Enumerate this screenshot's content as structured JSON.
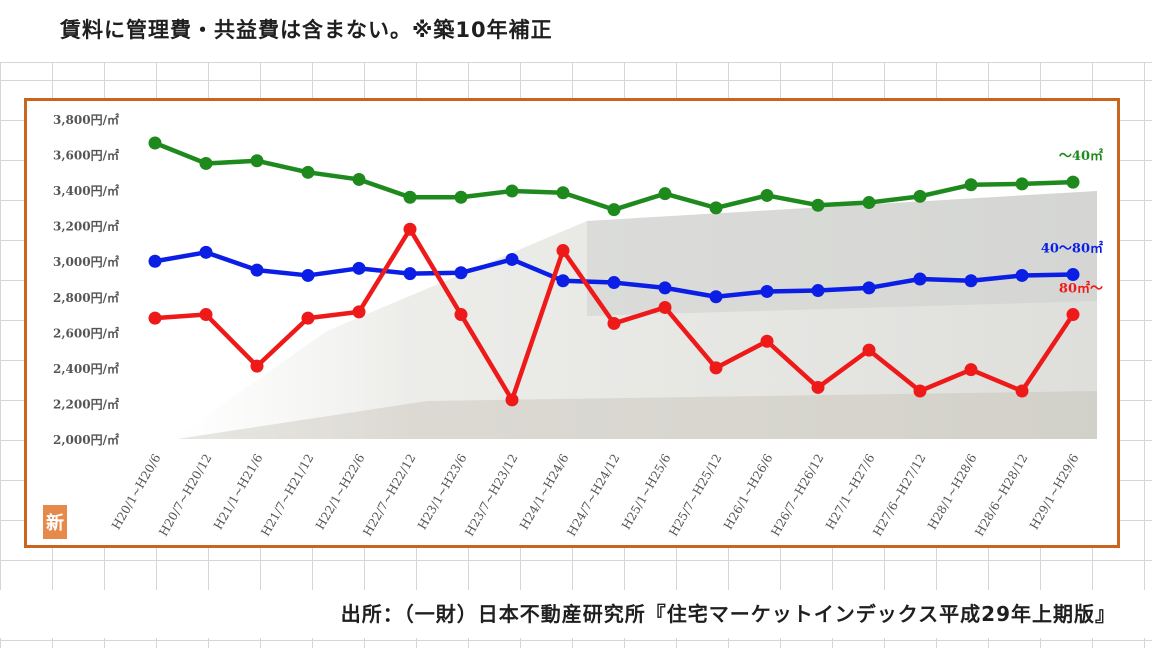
{
  "heading": "賃料に管理費・共益費は含まない。※築10年補正",
  "source": "出所：（一財）日本不動産研究所『住宅マーケットインデックス平成29年上期版』",
  "badge": "新",
  "chart_data": {
    "type": "line",
    "categories": [
      "H20/1~H20/6",
      "H20/7~H20/12",
      "H21/1~H21/6",
      "H21/7~H21/12",
      "H22/1~H22/6",
      "H22/7~H22/12",
      "H23/1~H23/6",
      "H23/7~H23/12",
      "H24/1~H24/6",
      "H24/7~H24/12",
      "H25/1~H25/6",
      "H25/7~H25/12",
      "H26/1~H26/6",
      "H26/7~H26/12",
      "H27/1~H27/6",
      "H27/6~H27/12",
      "H28/1~H28/6",
      "H28/6~H28/12",
      "H29/1~H29/6"
    ],
    "y_ticks": [
      "2,000円/㎡",
      "2,200円/㎡",
      "2,400円/㎡",
      "2,600円/㎡",
      "2,800円/㎡",
      "3,000円/㎡",
      "3,200円/㎡",
      "3,400円/㎡",
      "3,600円/㎡",
      "3,800円/㎡"
    ],
    "ylim": [
      2000,
      3800
    ],
    "grid": false,
    "series": [
      {
        "name": "～40㎡",
        "color": "#1e8a1e",
        "values": [
          3665,
          3550,
          3565,
          3500,
          3460,
          3360,
          3360,
          3395,
          3385,
          3290,
          3380,
          3300,
          3370,
          3315,
          3330,
          3365,
          3430,
          3435,
          3445
        ]
      },
      {
        "name": "40～80㎡",
        "color": "#0a1ee6",
        "values": [
          3000,
          3050,
          2950,
          2920,
          2960,
          2930,
          2935,
          3010,
          2890,
          2880,
          2850,
          2800,
          2830,
          2835,
          2850,
          2900,
          2890,
          2920,
          2925
        ]
      },
      {
        "name": "80㎡～",
        "color": "#ee1a1a",
        "values": [
          2680,
          2700,
          2410,
          2680,
          2715,
          3180,
          2700,
          2220,
          3060,
          2650,
          2740,
          2400,
          2550,
          2290,
          2500,
          2270,
          2390,
          2270,
          2700
        ]
      }
    ]
  }
}
